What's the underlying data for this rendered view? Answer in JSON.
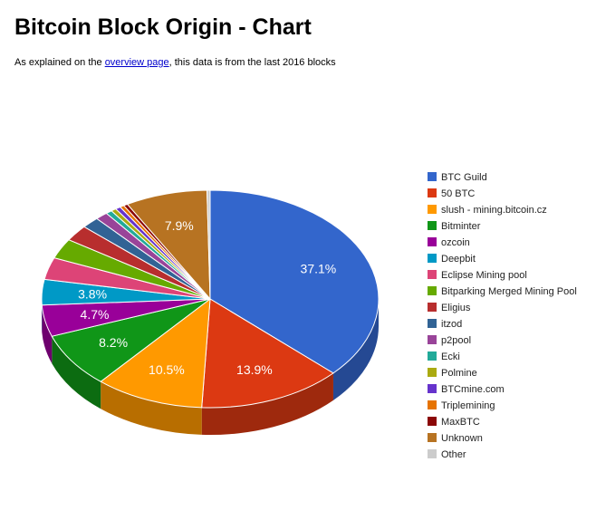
{
  "page": {
    "title": "Bitcoin Block Origin - Chart",
    "intro_before": "As explained on the ",
    "intro_link": "overview page",
    "intro_after": ", this data is from the last 2016 blocks"
  },
  "chart_data": {
    "type": "pie",
    "title": "",
    "legend_position": "right",
    "slices": [
      {
        "name": "BTC Guild",
        "value": 37.1,
        "label": "37.1%",
        "color": "#3366cc"
      },
      {
        "name": "50 BTC",
        "value": 13.9,
        "label": "13.9%",
        "color": "#dc3912"
      },
      {
        "name": "slush - mining.bitcoin.cz",
        "value": 10.5,
        "label": "10.5%",
        "color": "#ff9900"
      },
      {
        "name": "Bitminter",
        "value": 8.2,
        "label": "8.2%",
        "color": "#109618"
      },
      {
        "name": "ozcoin",
        "value": 4.7,
        "label": "4.7%",
        "color": "#990099"
      },
      {
        "name": "Deepbit",
        "value": 3.8,
        "label": "3.8%",
        "color": "#0099c6"
      },
      {
        "name": "Eclipse Mining pool",
        "value": 3.3,
        "label": "",
        "color": "#dd4477"
      },
      {
        "name": "Bitparking Merged Mining Pool",
        "value": 3.0,
        "label": "",
        "color": "#66aa00"
      },
      {
        "name": "Eligius",
        "value": 2.4,
        "label": "",
        "color": "#b82e2e"
      },
      {
        "name": "itzod",
        "value": 1.7,
        "label": "",
        "color": "#316395"
      },
      {
        "name": "p2pool",
        "value": 1.2,
        "label": "",
        "color": "#994499"
      },
      {
        "name": "Ecki",
        "value": 0.6,
        "label": "",
        "color": "#22aa99"
      },
      {
        "name": "Polmine",
        "value": 0.5,
        "label": "",
        "color": "#aaaa11"
      },
      {
        "name": "BTCmine.com",
        "value": 0.5,
        "label": "",
        "color": "#6633cc"
      },
      {
        "name": "Triplemining",
        "value": 0.4,
        "label": "",
        "color": "#e67300"
      },
      {
        "name": "MaxBTC",
        "value": 0.4,
        "label": "",
        "color": "#8b0707"
      },
      {
        "name": "Unknown",
        "value": 7.9,
        "label": "7.9%",
        "color": "#b77322"
      },
      {
        "name": "Other",
        "value": 0.3,
        "label": "",
        "color": "#cccccc"
      }
    ]
  }
}
